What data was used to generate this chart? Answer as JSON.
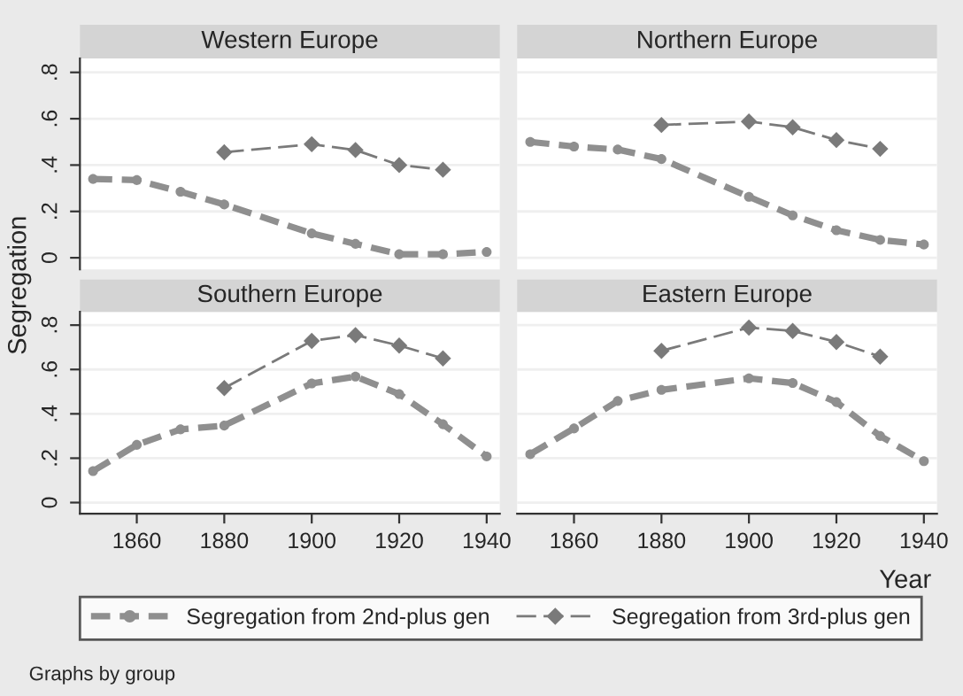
{
  "chart_data": [
    {
      "type": "line",
      "title": "Western Europe",
      "ylabel": "Segregation",
      "xlim": [
        1847,
        1943
      ],
      "ylim": [
        -0.05,
        0.86
      ],
      "xticks": [
        1860,
        1880,
        1900,
        1920,
        1940
      ],
      "yticks": [
        0,
        {
          "value": 0.2,
          "label": ".2"
        },
        {
          "value": 0.4,
          "label": ".4"
        },
        {
          "value": 0.6,
          "label": ".6"
        },
        {
          "value": 0.8,
          "label": ".8"
        }
      ],
      "tick_labels": "y",
      "grid": "y",
      "legend": "bottom",
      "line_style": "dashed",
      "annotations": [
        "Graphs by group"
      ],
      "series": [
        {
          "name": "Segregation from 2nd-plus gen",
          "color": "#8f8f8f",
          "marker": "circle",
          "x": [
            1850,
            1860,
            1870,
            1880,
            1900,
            1910,
            1920,
            1930,
            1940
          ],
          "values": [
            0.34,
            0.335,
            0.285,
            0.23,
            0.105,
            0.06,
            0.015,
            0.015,
            0.025
          ]
        },
        {
          "name": "Segregation from 3rd-plus gen",
          "color": "#7a7a7a",
          "marker": "diamond",
          "x": [
            1880,
            1900,
            1910,
            1920,
            1930
          ],
          "values": [
            0.455,
            0.49,
            0.465,
            0.4,
            0.38
          ]
        }
      ]
    },
    {
      "type": "line",
      "title": "Northern Europe",
      "xlim": [
        1847,
        1943
      ],
      "ylim": [
        -0.05,
        0.86
      ],
      "xticks": [
        1860,
        1880,
        1900,
        1920,
        1940
      ],
      "yticks": [
        0,
        0.2,
        0.4,
        0.6,
        0.8
      ],
      "tick_labels": false,
      "grid": "y",
      "line_style": "dashed",
      "series": [
        {
          "color": "#8f8f8f",
          "marker": "circle",
          "x": [
            1850,
            1860,
            1870,
            1880,
            1900,
            1910,
            1920,
            1930,
            1940
          ],
          "values": [
            0.5,
            0.48,
            0.467,
            0.426,
            0.263,
            0.183,
            0.119,
            0.077,
            0.057
          ]
        },
        {
          "color": "#7a7a7a",
          "marker": "diamond",
          "x": [
            1880,
            1900,
            1910,
            1920,
            1930
          ],
          "values": [
            0.573,
            0.588,
            0.563,
            0.508,
            0.47
          ]
        }
      ]
    },
    {
      "type": "line",
      "title": "Southern Europe",
      "xlim": [
        1847,
        1943
      ],
      "ylim": [
        -0.05,
        0.86
      ],
      "xticks": [
        1860,
        1880,
        1900,
        1920,
        1940
      ],
      "yticks": [
        0,
        {
          "value": 0.2,
          "label": ".2"
        },
        {
          "value": 0.4,
          "label": ".4"
        },
        {
          "value": 0.6,
          "label": ".6"
        },
        {
          "value": 0.8,
          "label": ".8"
        }
      ],
      "grid": "y",
      "line_style": "dashed",
      "series": [
        {
          "color": "#8f8f8f",
          "marker": "circle",
          "x": [
            1850,
            1860,
            1870,
            1880,
            1900,
            1910,
            1920,
            1930,
            1940
          ],
          "values": [
            0.142,
            0.26,
            0.33,
            0.347,
            0.537,
            0.568,
            0.489,
            0.353,
            0.208
          ]
        },
        {
          "color": "#7a7a7a",
          "marker": "diamond",
          "x": [
            1880,
            1900,
            1910,
            1920,
            1930
          ],
          "values": [
            0.516,
            0.729,
            0.755,
            0.708,
            0.65
          ]
        }
      ]
    },
    {
      "type": "line",
      "title": "Eastern Europe",
      "xlabel": "Year",
      "xlim": [
        1847,
        1943
      ],
      "ylim": [
        -0.05,
        0.86
      ],
      "xticks": [
        1860,
        1880,
        1900,
        1920,
        1940
      ],
      "yticks": [
        0,
        0.2,
        0.4,
        0.6,
        0.8
      ],
      "tick_labels": "x",
      "grid": "y",
      "line_style": "dashed",
      "series": [
        {
          "color": "#8f8f8f",
          "marker": "circle",
          "x": [
            1850,
            1860,
            1870,
            1880,
            1900,
            1910,
            1920,
            1930,
            1940
          ],
          "values": [
            0.218,
            0.334,
            0.458,
            0.508,
            0.56,
            0.539,
            0.453,
            0.3,
            0.187
          ]
        },
        {
          "color": "#7a7a7a",
          "marker": "diamond",
          "x": [
            1880,
            1900,
            1910,
            1920,
            1930
          ],
          "values": [
            0.684,
            0.789,
            0.774,
            0.724,
            0.658
          ]
        }
      ]
    }
  ]
}
